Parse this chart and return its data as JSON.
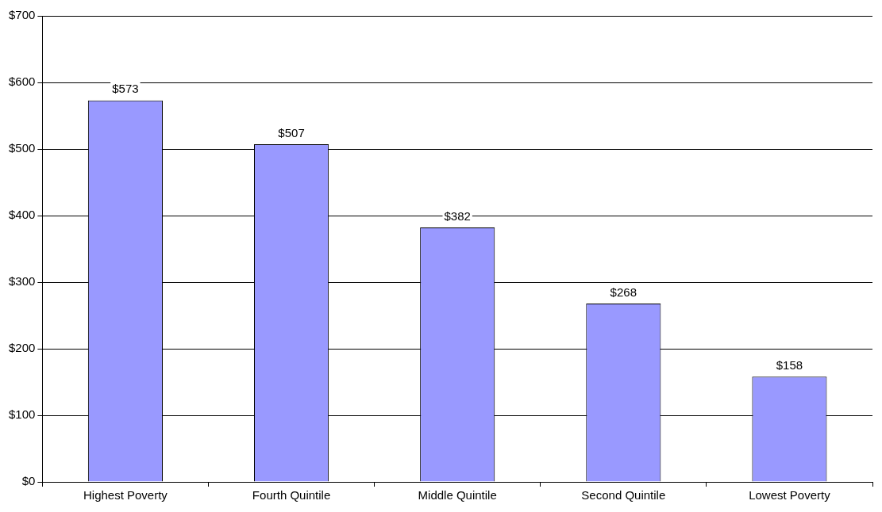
{
  "chart_data": {
    "type": "bar",
    "categories": [
      "Highest Poverty",
      "Fourth Quintile",
      "Middle Quintile",
      "Second Quintile",
      "Lowest Poverty"
    ],
    "values": [
      573,
      507,
      382,
      268,
      158
    ],
    "value_labels": [
      "$573",
      "$507",
      "$382",
      "$268",
      "$158"
    ],
    "color": "#9999ff",
    "ylim": [
      0,
      700
    ],
    "yticks": [
      {
        "value": 0,
        "label": "$0"
      },
      {
        "value": 100,
        "label": "$100"
      },
      {
        "value": 200,
        "label": "$200"
      },
      {
        "value": 300,
        "label": "$300"
      },
      {
        "value": 400,
        "label": "$400"
      },
      {
        "value": 500,
        "label": "$500"
      },
      {
        "value": 600,
        "label": "$600"
      },
      {
        "value": 700,
        "label": "$700"
      }
    ],
    "grid": "y",
    "legend": false
  }
}
